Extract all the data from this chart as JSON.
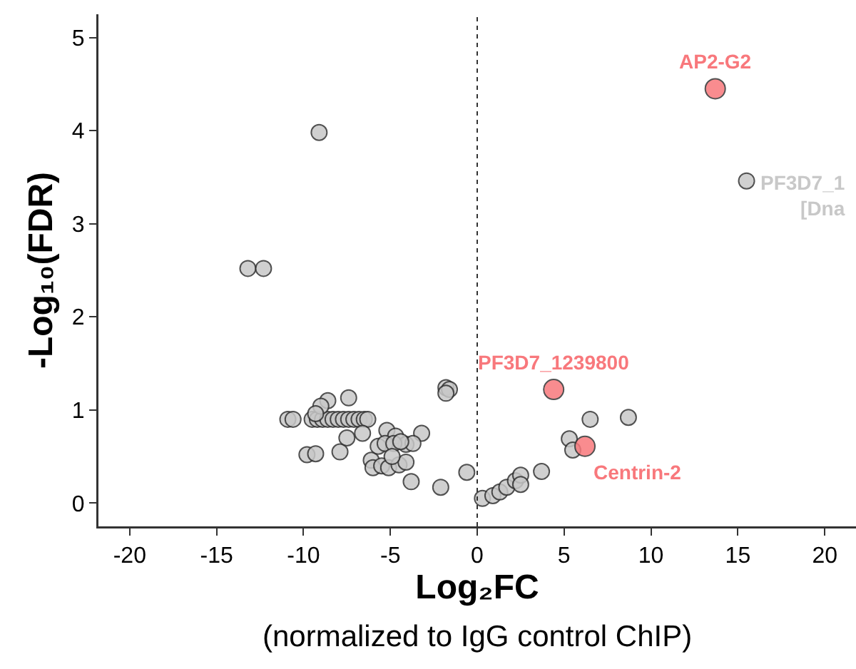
{
  "chart_data": {
    "type": "scatter",
    "xlabel": "Log₂FC",
    "ylabel": "-Log₁₀(FDR)",
    "xlim": [
      -21.8,
      21.8
    ],
    "ylim": [
      -0.25,
      5.25
    ],
    "xticks": [
      -20,
      -15,
      -10,
      -5,
      0,
      5,
      10,
      15,
      20
    ],
    "yticks": [
      0,
      1,
      2,
      3,
      4,
      5
    ],
    "marker": "circle",
    "series": [
      {
        "color": "#c8c8c8",
        "x": [
          -9.1,
          -13.2,
          -12.3,
          15.5,
          6.5,
          8.7,
          5.3,
          5.5,
          3.7,
          0.3,
          0.9,
          1.3,
          1.7,
          2.2,
          2.5,
          2.5,
          -0.6,
          -2.1,
          -3.8,
          -1.8,
          -1.6,
          -1.8,
          -10.9,
          -10.6,
          -9.5,
          -9.2,
          -8.9,
          -8.6,
          -8.3,
          -8.0,
          -7.7,
          -7.4,
          -7.1,
          -6.8,
          -6.5,
          -6.3,
          -8.6,
          -9.0,
          -7.4,
          -9.3,
          -9.8,
          -9.3,
          -7.9,
          -7.5,
          -6.6,
          -5.2,
          -4.7,
          -3.2,
          -4.1,
          -3.7,
          -6.1,
          -6.0,
          -5.5,
          -5.1,
          -4.5,
          -4.1,
          -5.7,
          -5.3,
          -4.8,
          -4.4,
          -4.9
        ],
        "values": [
          3.98,
          2.52,
          2.52,
          3.46,
          0.9,
          0.92,
          0.69,
          0.57,
          0.34,
          0.05,
          0.08,
          0.12,
          0.17,
          0.24,
          0.3,
          0.2,
          0.33,
          0.17,
          0.23,
          1.24,
          1.22,
          1.18,
          0.9,
          0.9,
          0.9,
          0.9,
          0.9,
          0.9,
          0.9,
          0.9,
          0.9,
          0.9,
          0.9,
          0.9,
          0.9,
          0.9,
          1.1,
          1.04,
          1.13,
          0.96,
          0.52,
          0.53,
          0.55,
          0.7,
          0.75,
          0.78,
          0.72,
          0.75,
          0.63,
          0.64,
          0.46,
          0.38,
          0.4,
          0.38,
          0.41,
          0.44,
          0.61,
          0.64,
          0.64,
          0.66,
          0.5
        ]
      },
      {
        "color": "#f8787c",
        "x": [
          13.7,
          4.4,
          6.2
        ],
        "values": [
          4.45,
          1.22,
          0.61
        ]
      }
    ],
    "ref_lines": [
      {
        "axis": "x",
        "value": 0,
        "line_style": "dotted",
        "color": "#333333"
      }
    ],
    "annotations": [
      {
        "text": "AP2-G2",
        "x": 13.7,
        "y": 4.45
      },
      {
        "text": "PF3D7_1239800",
        "x": 4.4,
        "y": 1.22
      },
      {
        "text": "Centrin-2",
        "x": 6.2,
        "y": 0.61
      },
      {
        "text": "PF3D7_1\n[Dna",
        "x": 15.5,
        "y": 3.46
      },
      "(normalized to IgG control ChIP)"
    ]
  }
}
